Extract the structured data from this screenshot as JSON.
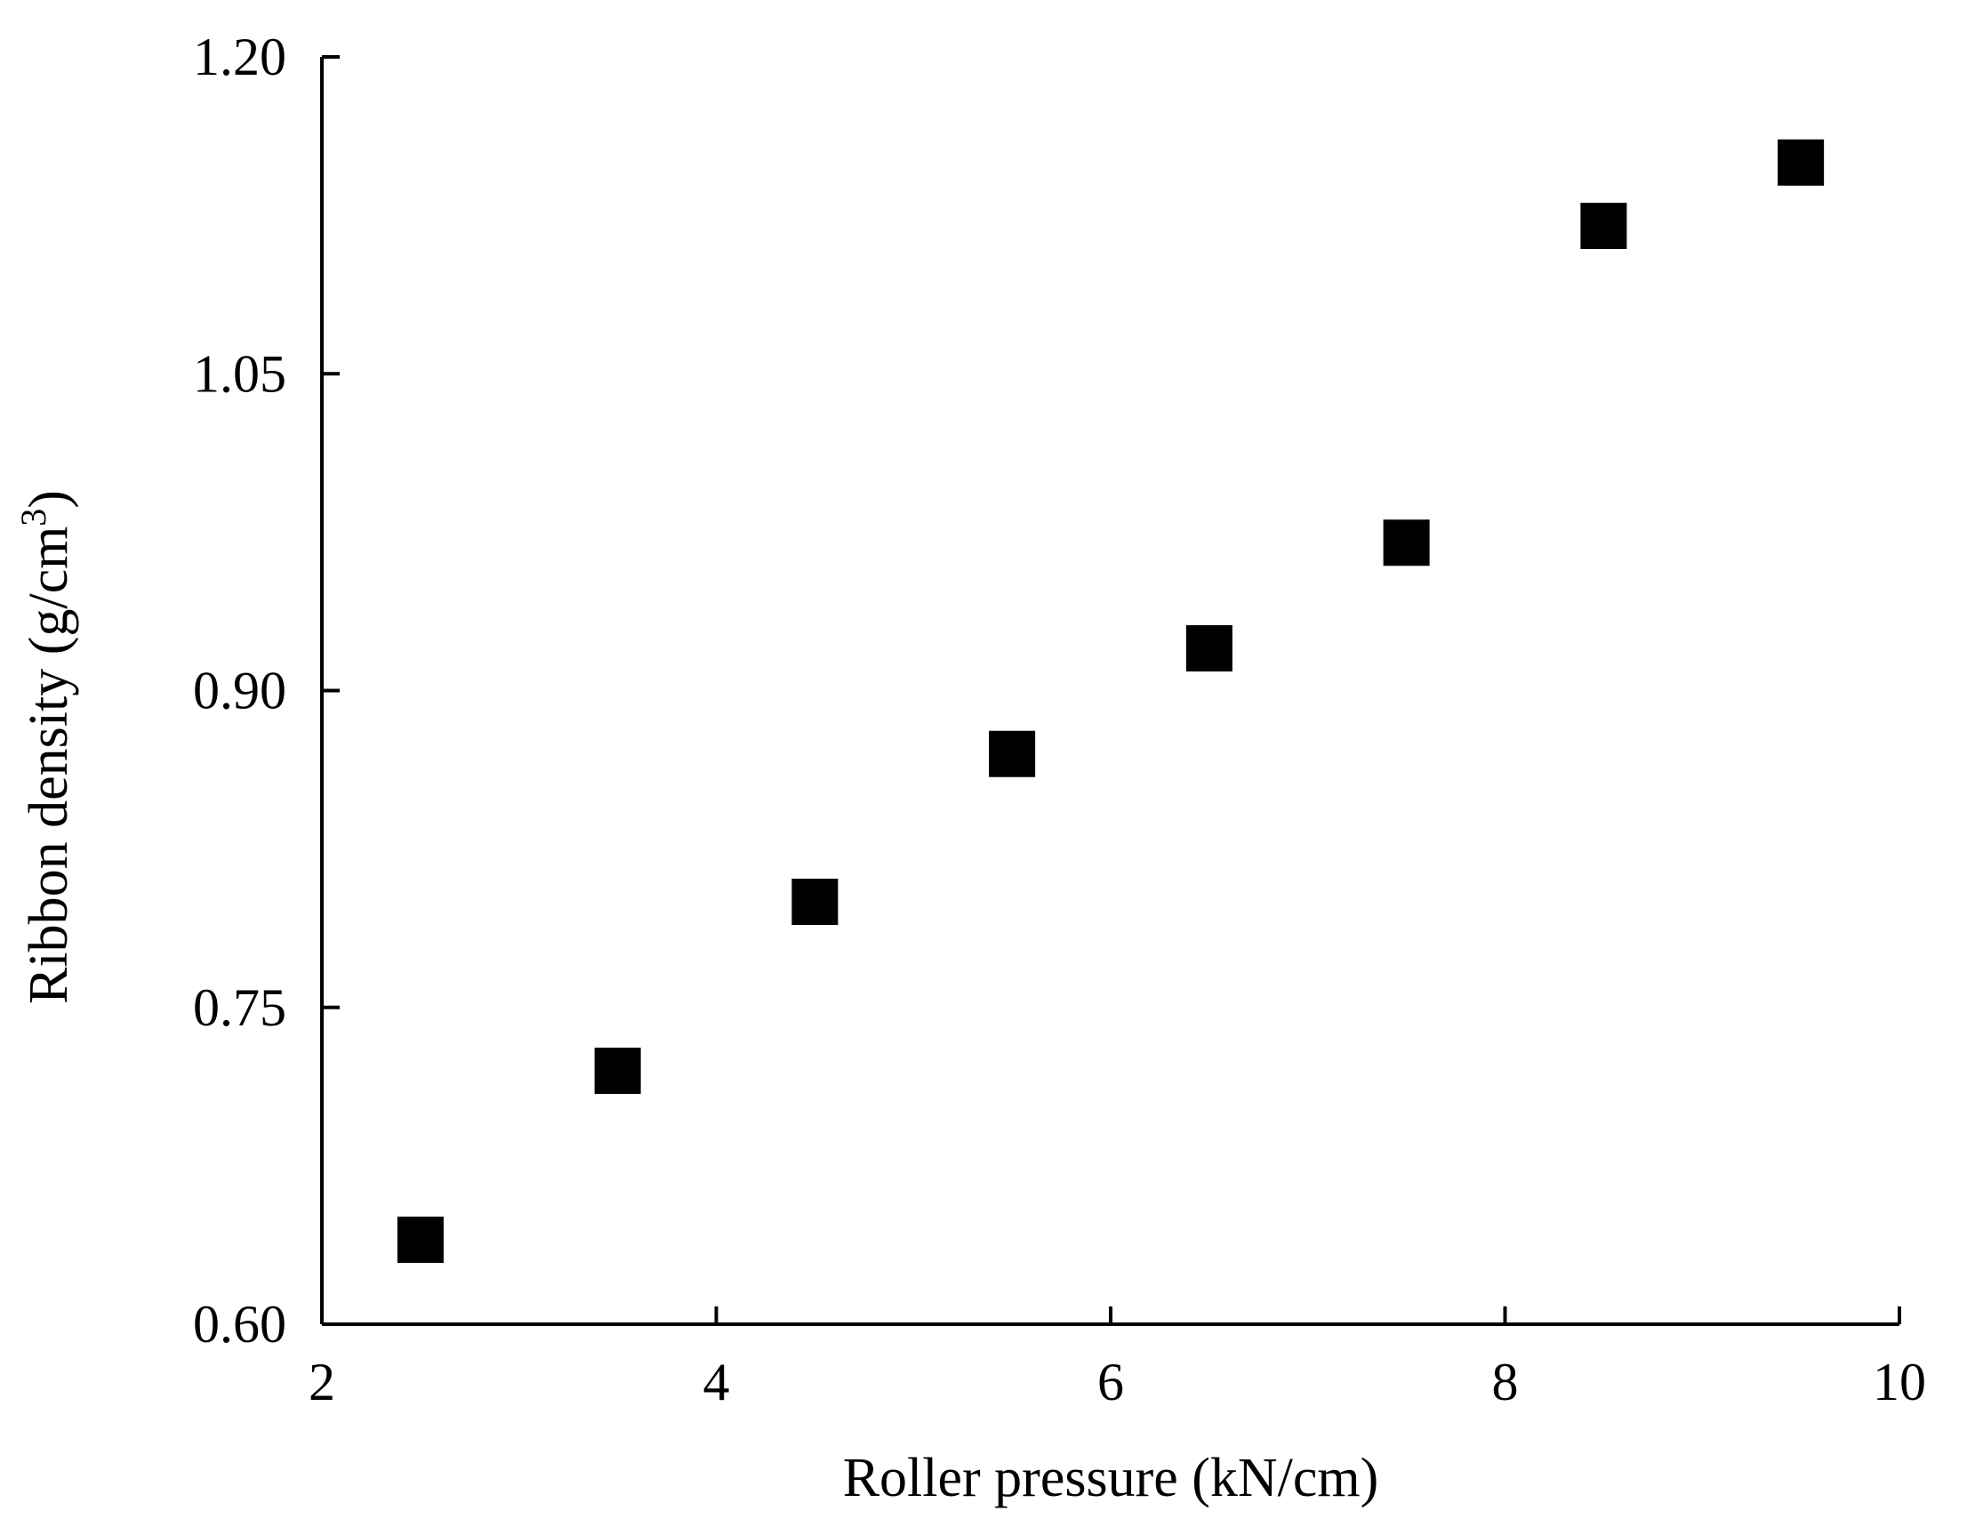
{
  "chart_data": {
    "type": "scatter",
    "xlabel": "Roller pressure (kN/cm)",
    "ylabel_main": "Ribbon density (g/cm",
    "ylabel_sup": "3",
    "ylabel_close": ")",
    "xlim": [
      2,
      10
    ],
    "ylim": [
      0.6,
      1.2
    ],
    "xticks": [
      "2",
      "4",
      "6",
      "8",
      "10"
    ],
    "yticks": [
      "0.60",
      "0.75",
      "0.90",
      "1.05",
      "1.20"
    ],
    "marker": "square",
    "marker_color": "#000000",
    "grid": false,
    "series": [
      {
        "x": [
          2.5,
          3.5,
          4.5,
          5.5,
          6.5,
          7.5,
          8.5,
          9.5
        ],
        "y": [
          0.64,
          0.72,
          0.8,
          0.87,
          0.92,
          0.97,
          1.12,
          1.15
        ]
      }
    ]
  }
}
